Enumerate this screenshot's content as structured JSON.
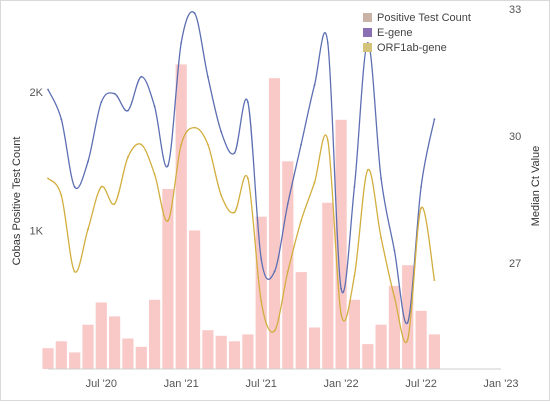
{
  "chart_data": {
    "type": "line",
    "title": "",
    "legend": {
      "placement": "top-right",
      "entries": [
        {
          "name": "Positive Test Count",
          "color": "#c9b2a6"
        },
        {
          "name": "E-gene",
          "color": "#8a6fb3"
        },
        {
          "name": "ORF1ab-gene",
          "color": "#d4c47a"
        }
      ]
    },
    "x_axis": {
      "type": "date",
      "ticks": [
        "Jul '20",
        "Jan '21",
        "Jul '21",
        "Jan '22",
        "Jul '22",
        "Jan '23"
      ],
      "range": [
        "2020-03",
        "2023-01"
      ]
    },
    "y_left": {
      "label": "Cobas Positive Test Count",
      "ticks": [
        "1K",
        "2K"
      ],
      "range": [
        0,
        2600
      ]
    },
    "y_right": {
      "label": "Median Ct Value",
      "ticks": [
        "27",
        "30",
        "33"
      ],
      "range": [
        24.5,
        33
      ]
    },
    "grid": false,
    "series": [
      {
        "name": "E-gene",
        "axis": "right",
        "color": "#5d6fb3",
        "x": [
          "2020-03",
          "2020-04",
          "2020-05",
          "2020-06",
          "2020-07",
          "2020-08",
          "2020-09",
          "2020-10",
          "2020-11",
          "2020-12",
          "2021-01",
          "2021-02",
          "2021-03",
          "2021-04",
          "2021-05",
          "2021-06",
          "2021-07",
          "2021-08",
          "2021-09",
          "2021-10",
          "2021-11",
          "2021-12",
          "2022-01",
          "2022-02",
          "2022-03",
          "2022-04",
          "2022-05",
          "2022-06",
          "2022-07",
          "2022-08"
        ],
        "values": [
          31.1,
          30.4,
          28.8,
          29.4,
          30.8,
          31.0,
          30.6,
          31.4,
          30.7,
          29.3,
          32.2,
          32.9,
          31.4,
          30.1,
          29.6,
          30.8,
          27.1,
          26.8,
          28.4,
          29.8,
          31.2,
          32.2,
          26.4,
          28.8,
          32.2,
          29.0,
          27.3,
          25.6,
          28.8,
          30.4
        ]
      },
      {
        "name": "ORF1ab-gene",
        "axis": "right",
        "color": "#d2ae3e",
        "x": [
          "2020-03",
          "2020-04",
          "2020-05",
          "2020-06",
          "2020-07",
          "2020-08",
          "2020-09",
          "2020-10",
          "2020-11",
          "2020-12",
          "2021-01",
          "2021-02",
          "2021-03",
          "2021-04",
          "2021-05",
          "2021-06",
          "2021-07",
          "2021-08",
          "2021-09",
          "2021-10",
          "2021-11",
          "2021-12",
          "2022-01",
          "2022-02",
          "2022-03",
          "2022-04",
          "2022-05",
          "2022-06",
          "2022-07",
          "2022-08"
        ],
        "values": [
          29.0,
          28.6,
          26.8,
          27.8,
          28.8,
          28.4,
          29.5,
          29.8,
          29.1,
          28.0,
          29.8,
          30.2,
          29.8,
          28.6,
          28.2,
          29.0,
          26.1,
          25.4,
          26.8,
          28.0,
          28.9,
          29.9,
          25.8,
          26.7,
          29.2,
          27.6,
          26.2,
          25.2,
          28.3,
          26.6
        ]
      },
      {
        "name": "Positive Test Count",
        "axis": "left",
        "type": "bar",
        "color": "#f6b7b4",
        "x": [
          "2020-03",
          "2020-04",
          "2020-05",
          "2020-06",
          "2020-07",
          "2020-08",
          "2020-09",
          "2020-10",
          "2020-11",
          "2020-12",
          "2021-01",
          "2021-02",
          "2021-03",
          "2021-04",
          "2021-05",
          "2021-06",
          "2021-07",
          "2021-08",
          "2021-09",
          "2021-10",
          "2021-11",
          "2021-12",
          "2022-01",
          "2022-02",
          "2022-03",
          "2022-04",
          "2022-05",
          "2022-06",
          "2022-07",
          "2022-08"
        ],
        "values": [
          150,
          200,
          120,
          320,
          480,
          380,
          220,
          160,
          500,
          1300,
          2200,
          1000,
          280,
          240,
          200,
          250,
          1100,
          2100,
          1500,
          700,
          300,
          1200,
          1800,
          500,
          180,
          320,
          600,
          750,
          420,
          250
        ]
      }
    ]
  }
}
